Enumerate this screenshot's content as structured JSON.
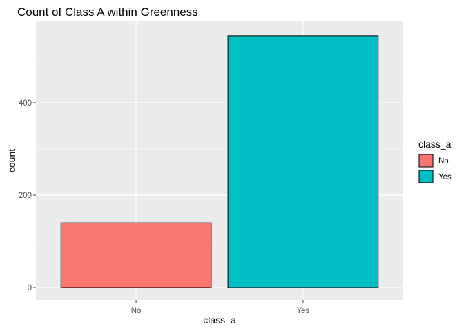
{
  "chart_data": {
    "type": "bar",
    "title": "Count of Class A within Greenness",
    "xlabel": "class_a",
    "ylabel": "count",
    "categories": [
      "No",
      "Yes"
    ],
    "values": [
      140,
      545
    ],
    "colors": [
      "#F8766D",
      "#00BFC4"
    ],
    "ylim": [
      0,
      570
    ],
    "yticks": [
      0,
      200,
      400
    ],
    "grid": true,
    "panel_background": "#EBEBEB",
    "legend": {
      "title": "class_a",
      "position": "right",
      "entries": [
        {
          "label": "No",
          "color": "#F8766D"
        },
        {
          "label": "Yes",
          "color": "#00BFC4"
        }
      ]
    }
  }
}
